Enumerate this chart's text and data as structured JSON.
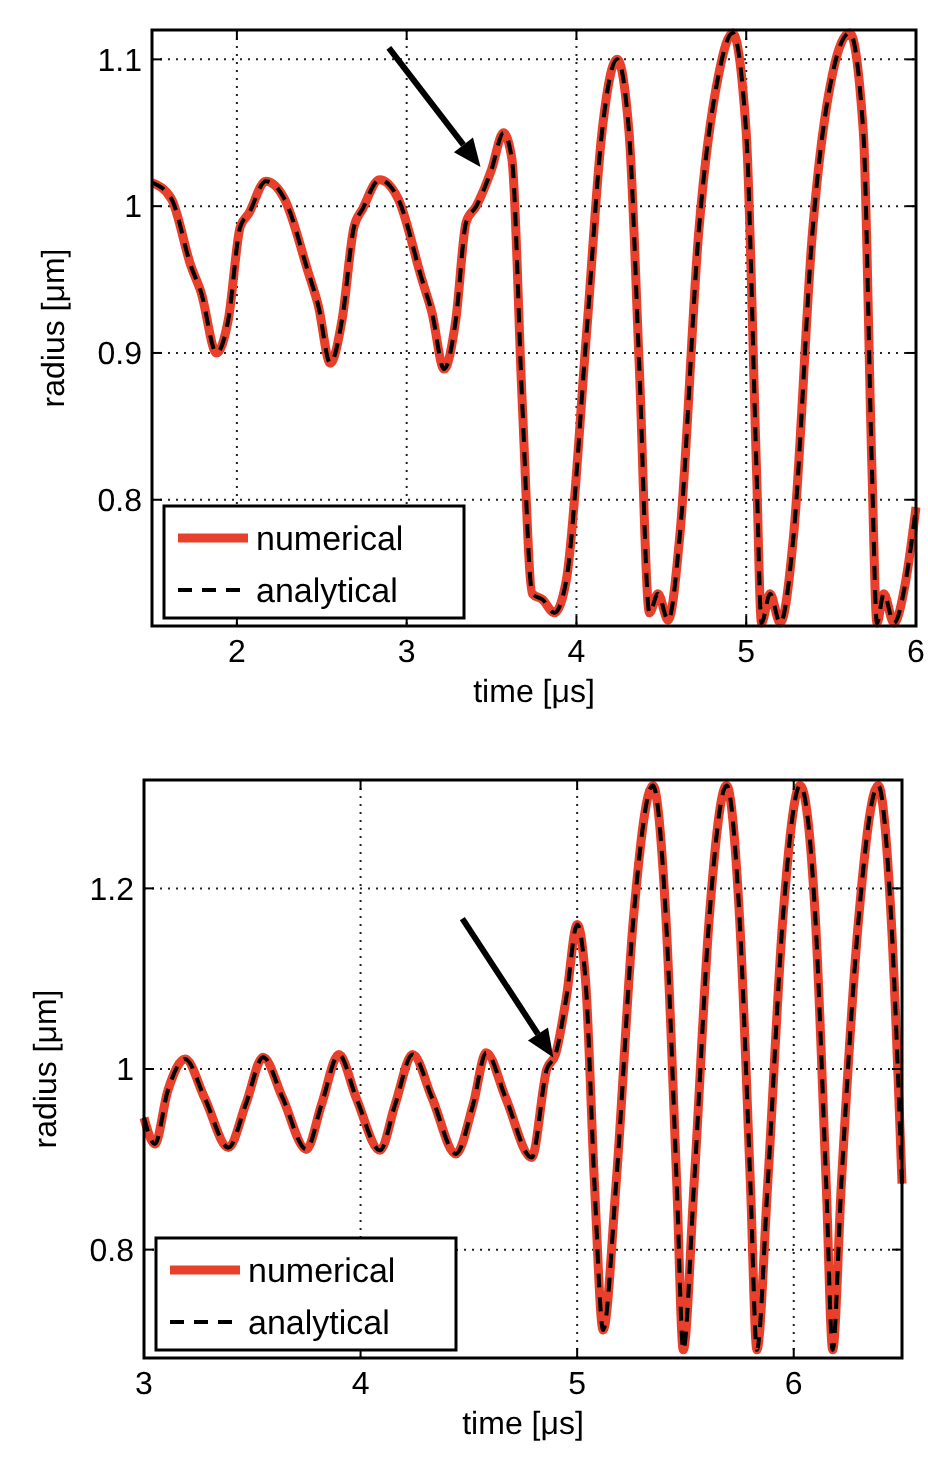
{
  "chart_data": [
    {
      "type": "line",
      "xlabel": "time [μs]",
      "ylabel": "radius [μm]",
      "xlim": [
        1.5,
        6
      ],
      "ylim": [
        0.714,
        1.12
      ],
      "xticks": [
        2,
        3,
        4,
        5,
        6
      ],
      "yticks": [
        0.8,
        0.9,
        1,
        1.1
      ],
      "grid": true,
      "legend": "bottom left",
      "x": [
        1.5,
        1.614,
        1.73,
        1.79,
        1.88,
        1.95,
        2.02,
        2.07,
        2.17,
        2.28,
        2.42,
        2.48,
        2.55,
        2.62,
        2.69,
        2.74,
        2.84,
        2.95,
        3.09,
        3.15,
        3.22,
        3.29,
        3.35,
        3.41,
        3.5,
        3.57,
        3.62,
        3.68,
        3.74,
        3.8,
        3.87,
        3.94,
        4.06,
        4.15,
        4.24,
        4.31,
        4.37,
        4.43,
        4.48,
        4.54,
        4.61,
        4.72,
        4.84,
        4.92,
        5.0,
        5.06,
        5.09,
        5.14,
        5.2,
        5.28,
        5.39,
        5.51,
        5.61,
        5.69,
        5.74,
        5.77,
        5.81,
        5.87,
        5.94,
        6.0
      ],
      "series": [
        {
          "name": "numerical",
          "color": "#e8402a",
          "line_style": "solid",
          "values": [
            1.016,
            1.005,
            0.959,
            0.941,
            0.9,
            0.923,
            0.986,
            0.995,
            1.017,
            1.005,
            0.955,
            0.932,
            0.893,
            0.923,
            0.986,
            0.998,
            1.018,
            1.005,
            0.95,
            0.927,
            0.889,
            0.923,
            0.989,
            1.0,
            1.025,
            1.05,
            1.032,
            0.868,
            0.736,
            0.732,
            0.723,
            0.745,
            0.914,
            1.05,
            1.1,
            1.05,
            0.891,
            0.723,
            0.736,
            0.718,
            0.777,
            0.982,
            1.091,
            1.118,
            1.05,
            0.823,
            0.716,
            0.736,
            0.716,
            0.777,
            0.982,
            1.091,
            1.118,
            1.05,
            0.823,
            0.716,
            0.736,
            0.716,
            0.745,
            0.795
          ]
        },
        {
          "name": "analytical",
          "color": "#000000",
          "line_style": "dashed",
          "values": [
            1.016,
            1.005,
            0.959,
            0.941,
            0.9,
            0.923,
            0.986,
            0.995,
            1.017,
            1.005,
            0.955,
            0.932,
            0.893,
            0.923,
            0.986,
            0.998,
            1.018,
            1.005,
            0.95,
            0.927,
            0.889,
            0.923,
            0.989,
            1.0,
            1.025,
            1.05,
            1.032,
            0.868,
            0.736,
            0.732,
            0.723,
            0.745,
            0.914,
            1.05,
            1.1,
            1.05,
            0.891,
            0.723,
            0.736,
            0.718,
            0.777,
            0.982,
            1.091,
            1.118,
            1.05,
            0.823,
            0.716,
            0.736,
            0.716,
            0.777,
            0.982,
            1.091,
            1.118,
            1.05,
            0.823,
            0.716,
            0.736,
            0.716,
            0.745,
            0.795
          ]
        }
      ]
    },
    {
      "type": "line",
      "xlabel": "time [μs]",
      "ylabel": "radius [μm]",
      "xlim": [
        3,
        6.5
      ],
      "ylim": [
        0.68,
        1.32
      ],
      "xticks": [
        3,
        4,
        5,
        6
      ],
      "yticks": [
        0.8,
        1,
        1.2
      ],
      "grid": true,
      "legend": "bottom left",
      "x": [
        3.0,
        3.05,
        3.11,
        3.19,
        3.28,
        3.39,
        3.47,
        3.55,
        3.64,
        3.75,
        3.82,
        3.9,
        3.98,
        4.09,
        4.16,
        4.24,
        4.33,
        4.44,
        4.52,
        4.58,
        4.67,
        4.79,
        4.86,
        4.9,
        4.95,
        5.0,
        5.04,
        5.08,
        5.12,
        5.18,
        5.26,
        5.35,
        5.41,
        5.46,
        5.49,
        5.54,
        5.61,
        5.69,
        5.75,
        5.8,
        5.83,
        5.88,
        5.95,
        6.03,
        6.1,
        6.15,
        6.18,
        6.22,
        6.3,
        6.39,
        6.45,
        6.5
      ],
      "series": [
        {
          "name": "numerical",
          "color": "#e8402a",
          "line_style": "solid",
          "values": [
            0.946,
            0.917,
            0.976,
            1.011,
            0.968,
            0.913,
            0.961,
            1.013,
            0.968,
            0.911,
            0.961,
            1.016,
            0.968,
            0.91,
            0.961,
            1.016,
            0.968,
            0.906,
            0.961,
            1.018,
            0.968,
            0.902,
            1.0,
            1.016,
            1.079,
            1.16,
            1.094,
            0.873,
            0.711,
            0.873,
            1.167,
            1.314,
            1.167,
            0.873,
            0.689,
            0.873,
            1.167,
            1.314,
            1.167,
            0.873,
            0.689,
            0.873,
            1.167,
            1.314,
            1.167,
            0.873,
            0.689,
            0.873,
            1.167,
            1.314,
            1.167,
            0.873
          ]
        },
        {
          "name": "analytical",
          "color": "#000000",
          "line_style": "dashed",
          "values": [
            0.946,
            0.917,
            0.976,
            1.011,
            0.968,
            0.913,
            0.961,
            1.013,
            0.968,
            0.911,
            0.961,
            1.016,
            0.968,
            0.91,
            0.961,
            1.016,
            0.968,
            0.906,
            0.961,
            1.018,
            0.968,
            0.902,
            1.0,
            1.016,
            1.079,
            1.16,
            1.094,
            0.873,
            0.711,
            0.873,
            1.167,
            1.314,
            1.167,
            0.873,
            0.689,
            0.873,
            1.167,
            1.314,
            1.167,
            0.873,
            0.689,
            0.873,
            1.167,
            1.314,
            1.167,
            0.873,
            0.689,
            0.873,
            1.167,
            1.314,
            1.167,
            0.873
          ]
        }
      ]
    }
  ]
}
